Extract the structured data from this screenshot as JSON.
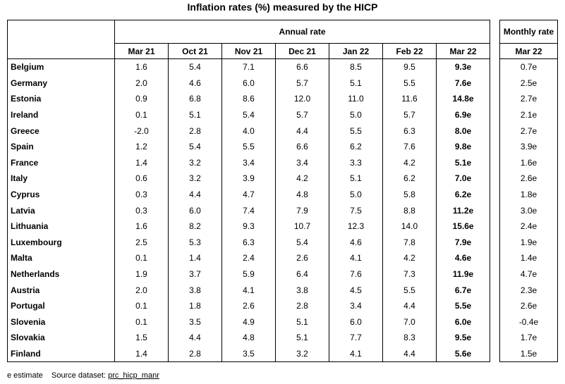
{
  "title": "Inflation rates (%) measured by the HICP",
  "annual_header": "Annual rate",
  "monthly_header": "Monthly rate",
  "annual_columns": [
    "Mar 21",
    "Oct 21",
    "Nov 21",
    "Dec 21",
    "Jan 22",
    "Feb 22",
    "Mar 22"
  ],
  "monthly_column": "Mar 22",
  "rows": [
    {
      "country": "Belgium",
      "annual": [
        "1.6",
        "5.4",
        "7.1",
        "6.6",
        "8.5",
        "9.5",
        "9.3e"
      ],
      "monthly": "0.7e"
    },
    {
      "country": "Germany",
      "annual": [
        "2.0",
        "4.6",
        "6.0",
        "5.7",
        "5.1",
        "5.5",
        "7.6e"
      ],
      "monthly": "2.5e"
    },
    {
      "country": "Estonia",
      "annual": [
        "0.9",
        "6.8",
        "8.6",
        "12.0",
        "11.0",
        "11.6",
        "14.8e"
      ],
      "monthly": "2.7e"
    },
    {
      "country": "Ireland",
      "annual": [
        "0.1",
        "5.1",
        "5.4",
        "5.7",
        "5.0",
        "5.7",
        "6.9e"
      ],
      "monthly": "2.1e"
    },
    {
      "country": "Greece",
      "annual": [
        "-2.0",
        "2.8",
        "4.0",
        "4.4",
        "5.5",
        "6.3",
        "8.0e"
      ],
      "monthly": "2.7e"
    },
    {
      "country": "Spain",
      "annual": [
        "1.2",
        "5.4",
        "5.5",
        "6.6",
        "6.2",
        "7.6",
        "9.8e"
      ],
      "monthly": "3.9e"
    },
    {
      "country": "France",
      "annual": [
        "1.4",
        "3.2",
        "3.4",
        "3.4",
        "3.3",
        "4.2",
        "5.1e"
      ],
      "monthly": "1.6e"
    },
    {
      "country": "Italy",
      "annual": [
        "0.6",
        "3.2",
        "3.9",
        "4.2",
        "5.1",
        "6.2",
        "7.0e"
      ],
      "monthly": "2.6e"
    },
    {
      "country": "Cyprus",
      "annual": [
        "0.3",
        "4.4",
        "4.7",
        "4.8",
        "5.0",
        "5.8",
        "6.2e"
      ],
      "monthly": "1.8e"
    },
    {
      "country": "Latvia",
      "annual": [
        "0.3",
        "6.0",
        "7.4",
        "7.9",
        "7.5",
        "8.8",
        "11.2e"
      ],
      "monthly": "3.0e"
    },
    {
      "country": "Lithuania",
      "annual": [
        "1.6",
        "8.2",
        "9.3",
        "10.7",
        "12.3",
        "14.0",
        "15.6e"
      ],
      "monthly": "2.4e"
    },
    {
      "country": "Luxembourg",
      "annual": [
        "2.5",
        "5.3",
        "6.3",
        "5.4",
        "4.6",
        "7.8",
        "7.9e"
      ],
      "monthly": "1.9e"
    },
    {
      "country": "Malta",
      "annual": [
        "0.1",
        "1.4",
        "2.4",
        "2.6",
        "4.1",
        "4.2",
        "4.6e"
      ],
      "monthly": "1.4e"
    },
    {
      "country": "Netherlands",
      "annual": [
        "1.9",
        "3.7",
        "5.9",
        "6.4",
        "7.6",
        "7.3",
        "11.9e"
      ],
      "monthly": "4.7e"
    },
    {
      "country": "Austria",
      "annual": [
        "2.0",
        "3.8",
        "4.1",
        "3.8",
        "4.5",
        "5.5",
        "6.7e"
      ],
      "monthly": "2.3e"
    },
    {
      "country": "Portugal",
      "annual": [
        "0.1",
        "1.8",
        "2.6",
        "2.8",
        "3.4",
        "4.4",
        "5.5e"
      ],
      "monthly": "2.6e"
    },
    {
      "country": "Slovenia",
      "annual": [
        "0.1",
        "3.5",
        "4.9",
        "5.1",
        "6.0",
        "7.0",
        "6.0e"
      ],
      "monthly": "-0.4e"
    },
    {
      "country": "Slovakia",
      "annual": [
        "1.5",
        "4.4",
        "4.8",
        "5.1",
        "7.7",
        "8.3",
        "9.5e"
      ],
      "monthly": "1.7e"
    },
    {
      "country": "Finland",
      "annual": [
        "1.4",
        "2.8",
        "3.5",
        "3.2",
        "4.1",
        "4.4",
        "5.6e"
      ],
      "monthly": "1.5e"
    }
  ],
  "footer": {
    "note": "e estimate",
    "source_label": "Source dataset:",
    "source_link": "prc_hicp_manr"
  }
}
